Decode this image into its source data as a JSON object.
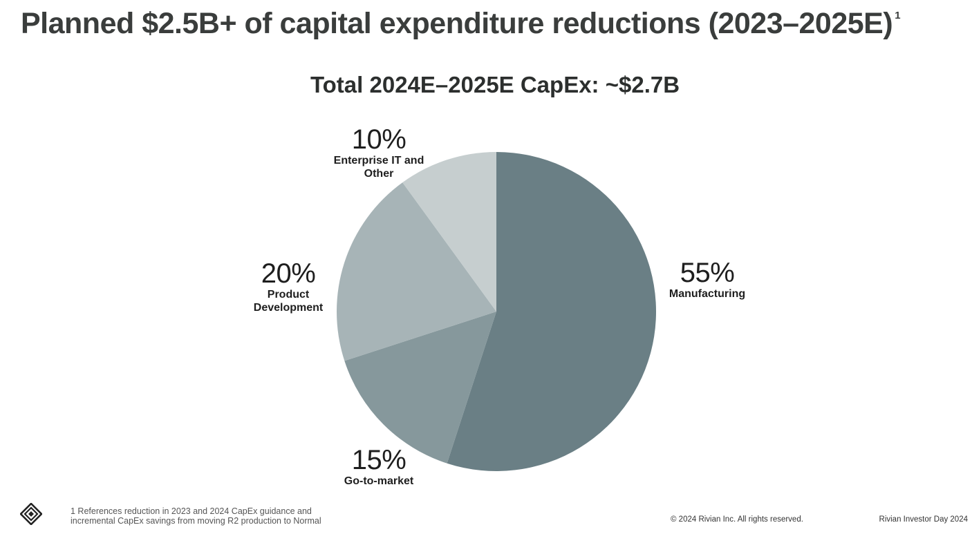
{
  "slide": {
    "title": "Planned $2.5B+ of capital expenditure reductions (2023–2025E)",
    "title_footnote_marker": "1",
    "footnote_line1": "1  References reduction in 2023 and 2024 CapEx guidance and",
    "footnote_line2": "incremental CapEx savings from moving R2 production to Normal",
    "copyright": "© 2024 Rivian Inc. All rights reserved.",
    "event": "Rivian Investor Day 2024",
    "logo_icon": "rivian-compass-icon"
  },
  "chart_data": {
    "type": "pie",
    "title": "Total 2024E–2025E CapEx: ~$2.7B",
    "start_angle_deg": 0,
    "direction": "clockwise",
    "slices": [
      {
        "label": "Manufacturing",
        "value": 55,
        "display": "55%",
        "color": "#6a7f85"
      },
      {
        "label": "Go-to-market",
        "value": 15,
        "display": "15%",
        "color": "#86989c"
      },
      {
        "label": "Product Development",
        "value": 20,
        "display": "20%",
        "color": "#a7b4b7"
      },
      {
        "label": "Enterprise IT and Other",
        "value": 10,
        "display": "10%",
        "color": "#c6cecf"
      }
    ]
  }
}
